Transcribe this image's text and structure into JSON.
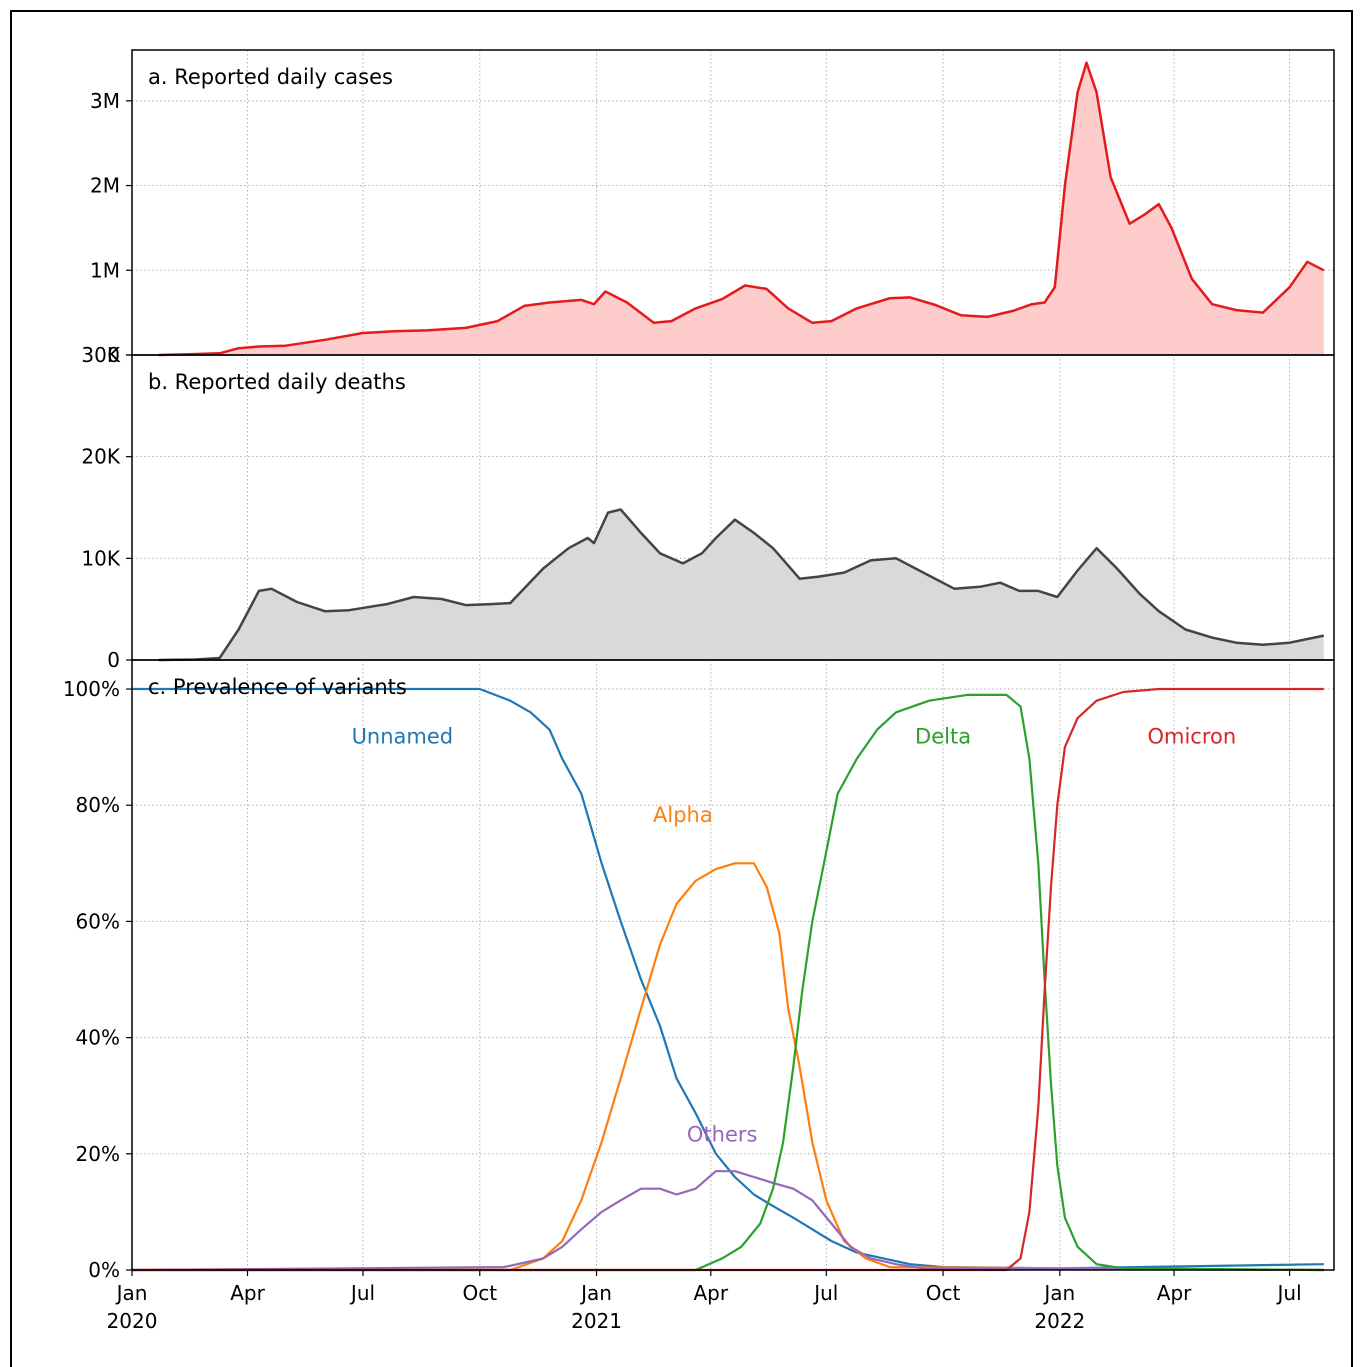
{
  "chart_data": [
    {
      "type": "area",
      "title": "a. Reported daily cases",
      "xlabel": "",
      "ylabel": "",
      "ylim": [
        0,
        3600000
      ],
      "yticks": [
        0,
        1000000,
        2000000,
        3000000
      ],
      "ytick_labels": [
        "0",
        "1M",
        "2M",
        "3M"
      ],
      "grid": true,
      "color": "#e41a1c",
      "fill": "#ffcccc",
      "series": [
        {
          "x": [
            "2020-01-22",
            "2020-02-15",
            "2020-03-10",
            "2020-03-25",
            "2020-04-10",
            "2020-05-01",
            "2020-06-01",
            "2020-07-01",
            "2020-07-25",
            "2020-08-20",
            "2020-09-20",
            "2020-10-15",
            "2020-11-05",
            "2020-11-25",
            "2020-12-20",
            "2020-12-30",
            "2021-01-08",
            "2021-01-25",
            "2021-02-15",
            "2021-03-01",
            "2021-03-20",
            "2021-04-10",
            "2021-04-28",
            "2021-05-15",
            "2021-06-01",
            "2021-06-20",
            "2021-07-05",
            "2021-07-25",
            "2021-08-20",
            "2021-09-05",
            "2021-09-25",
            "2021-10-15",
            "2021-11-05",
            "2021-11-25",
            "2021-12-10",
            "2021-12-20",
            "2021-12-28",
            "2022-01-05",
            "2022-01-15",
            "2022-01-22",
            "2022-01-30",
            "2022-02-10",
            "2022-02-25",
            "2022-03-08",
            "2022-03-20",
            "2022-03-30",
            "2022-04-15",
            "2022-05-01",
            "2022-05-20",
            "2022-06-10",
            "2022-07-01",
            "2022-07-15",
            "2022-07-28"
          ],
          "values": [
            0,
            10000,
            20000,
            80000,
            100000,
            110000,
            180000,
            260000,
            280000,
            290000,
            320000,
            400000,
            580000,
            620000,
            650000,
            600000,
            750000,
            620000,
            380000,
            400000,
            550000,
            660000,
            820000,
            780000,
            550000,
            380000,
            400000,
            550000,
            670000,
            680000,
            590000,
            470000,
            450000,
            520000,
            600000,
            620000,
            800000,
            2000000,
            3100000,
            3450000,
            3100000,
            2100000,
            1550000,
            1650000,
            1780000,
            1500000,
            900000,
            600000,
            530000,
            500000,
            800000,
            1100000,
            1000000
          ]
        }
      ]
    },
    {
      "type": "area",
      "title": "b. Reported daily deaths",
      "xlabel": "",
      "ylabel": "",
      "ylim": [
        0,
        30000
      ],
      "yticks": [
        0,
        10000,
        20000,
        30000
      ],
      "ytick_labels": [
        "0",
        "10K",
        "20K",
        "30K"
      ],
      "grid": true,
      "color": "#444444",
      "fill": "#d9d9d9",
      "series": [
        {
          "x": [
            "2020-01-22",
            "2020-02-20",
            "2020-03-10",
            "2020-03-25",
            "2020-04-10",
            "2020-04-20",
            "2020-05-10",
            "2020-06-01",
            "2020-06-20",
            "2020-07-20",
            "2020-08-10",
            "2020-09-01",
            "2020-09-20",
            "2020-10-10",
            "2020-10-25",
            "2020-11-20",
            "2020-12-10",
            "2020-12-25",
            "2020-12-30",
            "2021-01-10",
            "2021-01-20",
            "2021-02-05",
            "2021-02-20",
            "2021-03-10",
            "2021-03-25",
            "2021-04-05",
            "2021-04-20",
            "2021-05-05",
            "2021-05-20",
            "2021-05-25",
            "2021-06-10",
            "2021-06-25",
            "2021-07-15",
            "2021-08-05",
            "2021-08-25",
            "2021-09-20",
            "2021-10-10",
            "2021-10-30",
            "2021-11-15",
            "2021-11-30",
            "2021-12-15",
            "2021-12-30",
            "2022-01-15",
            "2022-01-30",
            "2022-02-15",
            "2022-03-05",
            "2022-03-20",
            "2022-04-10",
            "2022-05-01",
            "2022-05-20",
            "2022-06-10",
            "2022-07-01",
            "2022-07-28"
          ],
          "values": [
            0,
            50,
            200,
            3000,
            6800,
            7000,
            5700,
            4800,
            4900,
            5500,
            6200,
            6000,
            5400,
            5500,
            5600,
            9000,
            11000,
            12000,
            11500,
            14500,
            14800,
            12500,
            10500,
            9500,
            10500,
            12000,
            13800,
            12500,
            11000,
            10300,
            8000,
            8200,
            8600,
            9800,
            10000,
            8300,
            7000,
            7200,
            7600,
            6800,
            6800,
            6200,
            8800,
            11000,
            9000,
            6500,
            4800,
            3000,
            2200,
            1700,
            1500,
            1700,
            2400
          ]
        }
      ]
    },
    {
      "type": "line",
      "title": "c. Prevalence of variants",
      "xlabel": "",
      "ylabel": "",
      "ylim": [
        0,
        1.05
      ],
      "yticks": [
        0,
        0.2,
        0.4,
        0.6,
        0.8,
        1.0
      ],
      "ytick_labels": [
        "0%",
        "20%",
        "40%",
        "60%",
        "80%",
        "100%"
      ],
      "grid": true,
      "series": [
        {
          "name": "Unnamed",
          "color": "#1f77b4",
          "x": [
            "2020-01-01",
            "2020-08-01",
            "2020-10-01",
            "2020-10-25",
            "2020-11-10",
            "2020-11-25",
            "2020-12-05",
            "2020-12-20",
            "2021-01-05",
            "2021-01-20",
            "2021-02-05",
            "2021-02-20",
            "2021-03-05",
            "2021-03-20",
            "2021-04-05",
            "2021-04-20",
            "2021-05-05",
            "2021-05-20",
            "2021-06-05",
            "2021-06-20",
            "2021-07-05",
            "2021-07-25",
            "2021-08-15",
            "2021-09-05",
            "2021-10-01",
            "2022-01-01",
            "2022-07-28"
          ],
          "values": [
            1.0,
            1.0,
            1.0,
            0.98,
            0.96,
            0.93,
            0.88,
            0.82,
            0.7,
            0.6,
            0.5,
            0.42,
            0.33,
            0.27,
            0.2,
            0.16,
            0.13,
            0.11,
            0.09,
            0.07,
            0.05,
            0.03,
            0.02,
            0.01,
            0.005,
            0.003,
            0.01
          ]
        },
        {
          "name": "Alpha",
          "color": "#ff7f0e",
          "x": [
            "2020-01-01",
            "2020-10-25",
            "2020-11-20",
            "2020-12-05",
            "2020-12-20",
            "2021-01-05",
            "2021-01-20",
            "2021-02-05",
            "2021-02-20",
            "2021-03-05",
            "2021-03-20",
            "2021-04-05",
            "2021-04-20",
            "2021-05-05",
            "2021-05-15",
            "2021-05-25",
            "2021-06-01",
            "2021-06-10",
            "2021-06-20",
            "2021-07-01",
            "2021-07-15",
            "2021-08-01",
            "2021-08-20",
            "2022-07-28"
          ],
          "values": [
            0,
            0,
            0.02,
            0.05,
            0.12,
            0.22,
            0.33,
            0.45,
            0.56,
            0.63,
            0.67,
            0.69,
            0.7,
            0.7,
            0.66,
            0.58,
            0.45,
            0.35,
            0.22,
            0.12,
            0.05,
            0.02,
            0.005,
            0
          ]
        },
        {
          "name": "Others",
          "color": "#9467bd",
          "x": [
            "2020-01-01",
            "2020-10-20",
            "2020-11-20",
            "2020-12-05",
            "2020-12-20",
            "2021-01-05",
            "2021-01-20",
            "2021-02-05",
            "2021-02-20",
            "2021-03-05",
            "2021-03-20",
            "2021-04-05",
            "2021-04-20",
            "2021-05-05",
            "2021-05-20",
            "2021-06-05",
            "2021-06-20",
            "2021-07-05",
            "2021-07-20",
            "2021-08-05",
            "2021-08-25",
            "2021-09-15",
            "2022-07-28"
          ],
          "values": [
            0,
            0.005,
            0.02,
            0.04,
            0.07,
            0.1,
            0.12,
            0.14,
            0.14,
            0.13,
            0.14,
            0.17,
            0.17,
            0.16,
            0.15,
            0.14,
            0.12,
            0.08,
            0.04,
            0.02,
            0.01,
            0.003,
            0
          ]
        },
        {
          "name": "Delta",
          "color": "#2ca02c",
          "x": [
            "2020-01-01",
            "2021-03-20",
            "2021-04-10",
            "2021-04-25",
            "2021-05-10",
            "2021-05-20",
            "2021-05-28",
            "2021-06-05",
            "2021-06-12",
            "2021-06-20",
            "2021-07-01",
            "2021-07-10",
            "2021-07-25",
            "2021-08-10",
            "2021-08-25",
            "2021-09-20",
            "2021-10-20",
            "2021-11-20",
            "2021-12-01",
            "2021-12-08",
            "2021-12-15",
            "2021-12-20",
            "2021-12-25",
            "2021-12-30",
            "2022-01-05",
            "2022-01-15",
            "2022-01-30",
            "2022-02-20",
            "2022-07-28"
          ],
          "values": [
            0,
            0,
            0.02,
            0.04,
            0.08,
            0.14,
            0.22,
            0.35,
            0.48,
            0.6,
            0.72,
            0.82,
            0.88,
            0.93,
            0.96,
            0.98,
            0.99,
            0.99,
            0.97,
            0.88,
            0.7,
            0.5,
            0.32,
            0.18,
            0.09,
            0.04,
            0.01,
            0.003,
            0
          ]
        },
        {
          "name": "Omicron",
          "color": "#d62728",
          "x": [
            "2020-01-01",
            "2021-11-20",
            "2021-12-01",
            "2021-12-08",
            "2021-12-15",
            "2021-12-20",
            "2021-12-25",
            "2021-12-30",
            "2022-01-05",
            "2022-01-15",
            "2022-01-30",
            "2022-02-20",
            "2022-03-20",
            "2022-07-28"
          ],
          "values": [
            0,
            0,
            0.02,
            0.1,
            0.28,
            0.48,
            0.66,
            0.8,
            0.9,
            0.95,
            0.98,
            0.995,
            1.0,
            1.0
          ]
        }
      ]
    }
  ],
  "x_axis": {
    "ticks": [
      {
        "date": "2020-01-01",
        "label": "Jan\n2020"
      },
      {
        "date": "2020-04-01",
        "label": "Apr"
      },
      {
        "date": "2020-07-01",
        "label": "Jul"
      },
      {
        "date": "2020-10-01",
        "label": "Oct"
      },
      {
        "date": "2021-01-01",
        "label": "Jan\n2021"
      },
      {
        "date": "2021-04-01",
        "label": "Apr"
      },
      {
        "date": "2021-07-01",
        "label": "Jul"
      },
      {
        "date": "2021-10-01",
        "label": "Oct"
      },
      {
        "date": "2022-01-01",
        "label": "Jan\n2022"
      },
      {
        "date": "2022-04-01",
        "label": "Apr"
      },
      {
        "date": "2022-07-01",
        "label": "Jul"
      }
    ],
    "range": [
      "2020-01-01",
      "2022-08-05"
    ]
  },
  "variant_labels": [
    {
      "name": "Unnamed",
      "date": "2020-08-01",
      "value": 0.92,
      "color": "#1f77b4"
    },
    {
      "name": "Alpha",
      "date": "2021-03-10",
      "value": 0.785,
      "color": "#ff7f0e"
    },
    {
      "name": "Others",
      "date": "2021-04-10",
      "value": 0.235,
      "color": "#9467bd"
    },
    {
      "name": "Delta",
      "date": "2021-10-01",
      "value": 0.92,
      "color": "#2ca02c"
    },
    {
      "name": "Omicron",
      "date": "2022-04-15",
      "value": 0.92,
      "color": "#d62728"
    }
  ]
}
